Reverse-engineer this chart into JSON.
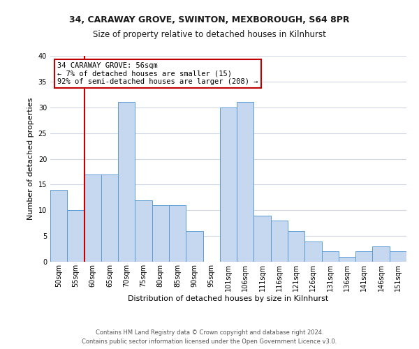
{
  "title": "34, CARAWAY GROVE, SWINTON, MEXBOROUGH, S64 8PR",
  "subtitle": "Size of property relative to detached houses in Kilnhurst",
  "xlabel": "Distribution of detached houses by size in Kilnhurst",
  "ylabel": "Number of detached properties",
  "bin_labels": [
    "50sqm",
    "55sqm",
    "60sqm",
    "65sqm",
    "70sqm",
    "75sqm",
    "80sqm",
    "85sqm",
    "90sqm",
    "95sqm",
    "101sqm",
    "106sqm",
    "111sqm",
    "116sqm",
    "121sqm",
    "126sqm",
    "131sqm",
    "136sqm",
    "141sqm",
    "146sqm",
    "151sqm"
  ],
  "bar_heights": [
    14,
    10,
    17,
    17,
    31,
    12,
    11,
    11,
    6,
    0,
    30,
    31,
    9,
    8,
    6,
    4,
    2,
    1,
    2,
    3,
    2
  ],
  "bar_color": "#c5d8f0",
  "bar_edge_color": "#5b9bd5",
  "property_line_x": 1.5,
  "property_line_color": "#c00000",
  "annotation_line1": "34 CARAWAY GROVE: 56sqm",
  "annotation_line2": "← 7% of detached houses are smaller (15)",
  "annotation_line3": "92% of semi-detached houses are larger (208) →",
  "annotation_box_color": "#c00000",
  "ylim": [
    0,
    40
  ],
  "yticks": [
    0,
    5,
    10,
    15,
    20,
    25,
    30,
    35,
    40
  ],
  "footer_line1": "Contains HM Land Registry data © Crown copyright and database right 2024.",
  "footer_line2": "Contains public sector information licensed under the Open Government Licence v3.0.",
  "bg_color": "#ffffff",
  "grid_color": "#d0d8e4",
  "title_fontsize": 9,
  "subtitle_fontsize": 8.5,
  "axis_label_fontsize": 8,
  "tick_fontsize": 7,
  "footer_fontsize": 6
}
